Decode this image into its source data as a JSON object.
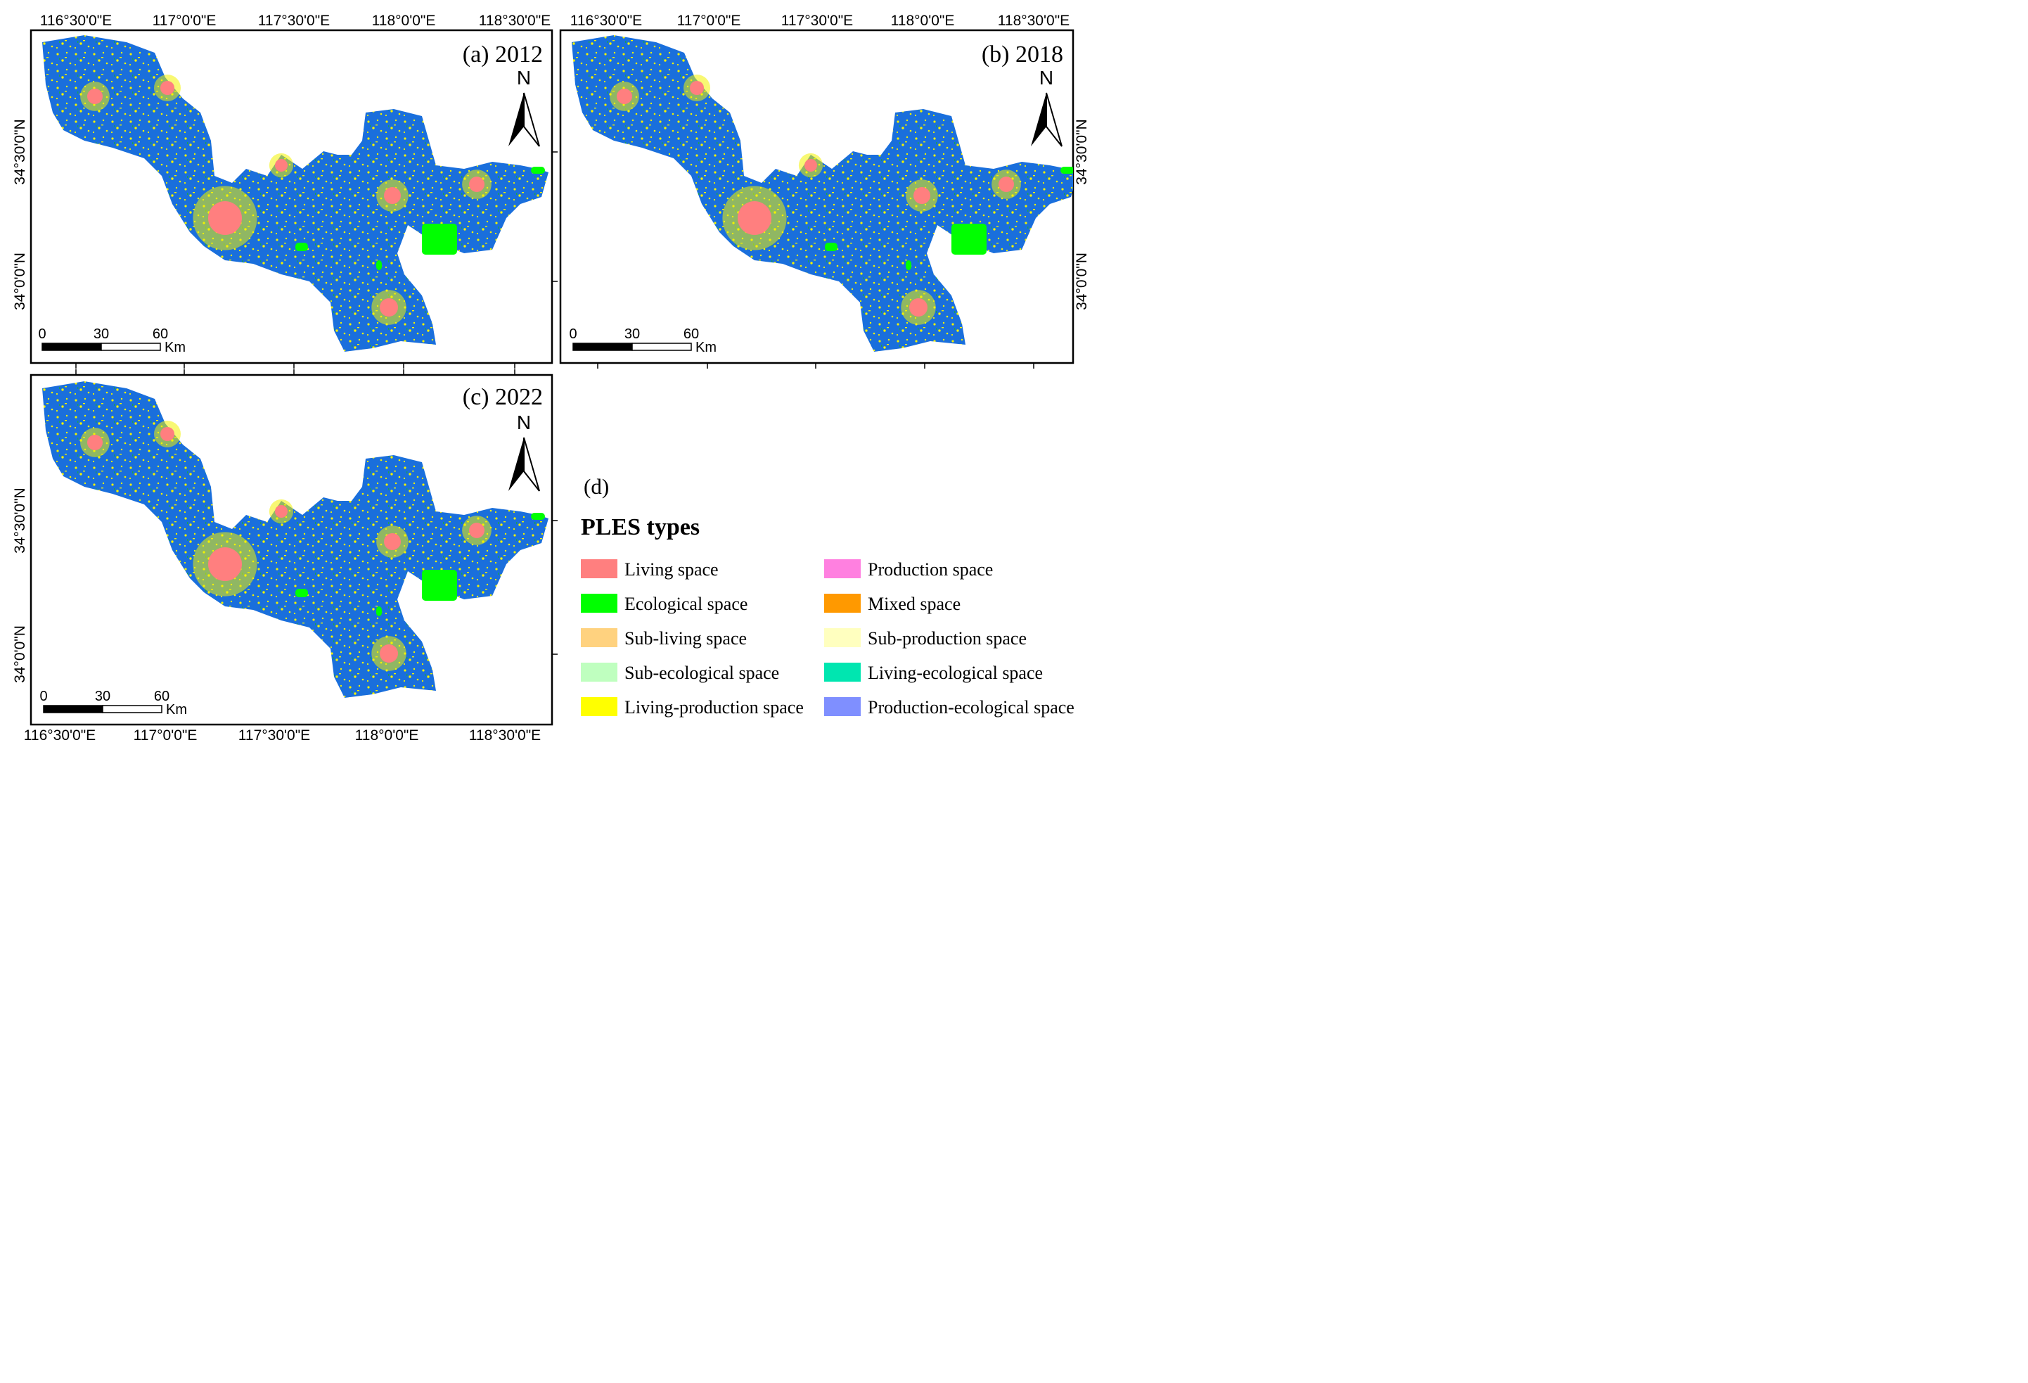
{
  "panels": [
    {
      "id": "a",
      "title": "(a) 2012",
      "top_labels": [
        "116°30'0\"E",
        "117°0'0\"E",
        "117°30'0\"E",
        "118°0'0\"E",
        "118°30'0\"E"
      ],
      "bottom_labels": [],
      "left_labels": [
        "34°30'0\"N",
        "34°0'0\"N"
      ],
      "right_labels": [],
      "north": "N",
      "scale": {
        "ticks": [
          "0",
          "30",
          "60"
        ],
        "unit": "Km"
      }
    },
    {
      "id": "b",
      "title": "(b) 2018",
      "top_labels": [
        "116°30'0\"E",
        "117°0'0\"E",
        "117°30'0\"E",
        "118°0'0\"E",
        "118°30'0\"E"
      ],
      "bottom_labels": [],
      "left_labels": [],
      "right_labels": [
        "34°30'0\"N",
        "34°0'0\"N"
      ],
      "north": "N",
      "scale": {
        "ticks": [
          "0",
          "30",
          "60"
        ],
        "unit": "Km"
      }
    },
    {
      "id": "c",
      "title": "(c) 2022",
      "top_labels": [],
      "bottom_labels": [
        "116°30'0\"E",
        "117°0'0\"E",
        "117°30'0\"E",
        "118°0'0\"E",
        "118°30'0\"E"
      ],
      "left_labels": [
        "34°30'0\"N",
        "34°0'0\"N"
      ],
      "right_labels": [],
      "north": "N",
      "scale": {
        "ticks": [
          "0",
          "30",
          "60"
        ],
        "unit": "Km"
      }
    }
  ],
  "legend": {
    "panel_label": "(d)",
    "title": "PLES types",
    "items": [
      {
        "label": "Living space",
        "color": "#ff7f7f"
      },
      {
        "label": "Ecological space",
        "color": "#00ff00"
      },
      {
        "label": "Sub-living space",
        "color": "#ffd27f"
      },
      {
        "label": "Sub-ecological space",
        "color": "#bfffbf"
      },
      {
        "label": "Living-production space",
        "color": "#ffff00"
      },
      {
        "label": "Production space",
        "color": "#ff80e0"
      },
      {
        "label": "Mixed space",
        "color": "#ff9900"
      },
      {
        "label": "Sub-production space",
        "color": "#ffffbf"
      },
      {
        "label": "Living-ecological space",
        "color": "#00e6b0"
      },
      {
        "label": "Production-ecological space",
        "color": "#7f8fff"
      }
    ]
  },
  "colors": {
    "base": "#1a6fdc",
    "frame": "#000000"
  }
}
